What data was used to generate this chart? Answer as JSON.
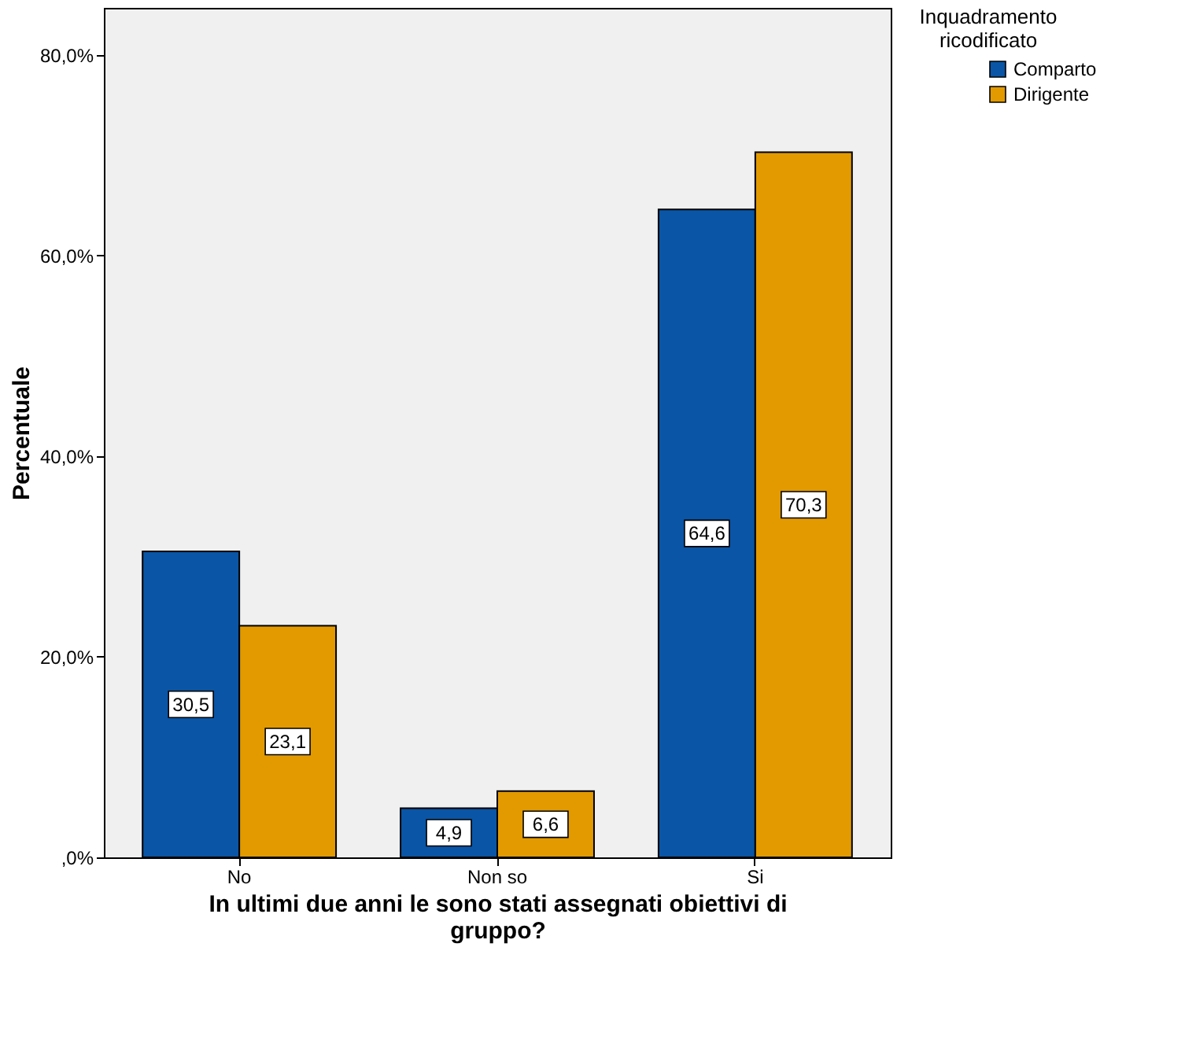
{
  "chart_data": {
    "type": "bar",
    "xlabel": "In ultimi due anni le sono stati assegnati obiettivi di gruppo?",
    "ylabel": "Percentuale",
    "legend_title": "Inquadramento ricodificato",
    "categories": [
      "No",
      "Non so",
      "Si"
    ],
    "series": [
      {
        "name": "Comparto",
        "color": "#0a55a5",
        "values": [
          30.5,
          4.9,
          64.6
        ],
        "value_labels": [
          "30,5",
          "4,9",
          "64,6"
        ]
      },
      {
        "name": "Dirigente",
        "color": "#e29a00",
        "values": [
          23.1,
          6.6,
          70.3
        ],
        "value_labels": [
          "23,1",
          "6,6",
          "70,3"
        ]
      }
    ],
    "ylim": [
      0,
      84.7
    ],
    "yticks": [
      {
        "value": 0,
        "label": ",0%"
      },
      {
        "value": 20,
        "label": "20,0%"
      },
      {
        "value": 40,
        "label": "40,0%"
      },
      {
        "value": 60,
        "label": "60,0%"
      },
      {
        "value": 80,
        "label": "80,0%"
      }
    ],
    "grid": false,
    "legend": "top right"
  }
}
